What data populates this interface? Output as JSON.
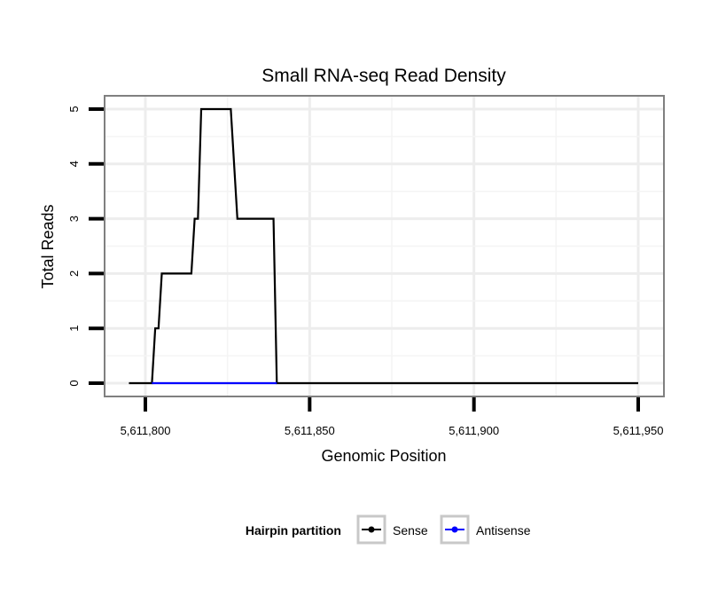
{
  "chart_data": {
    "type": "line",
    "title": "Small RNA-seq Read Density",
    "xlabel": "Genomic Position",
    "ylabel": "Total Reads",
    "xlim": [
      5611795,
      5611950
    ],
    "ylim": [
      0,
      5
    ],
    "x_ticks": [
      5611800,
      5611850,
      5611900,
      5611950
    ],
    "x_tick_labels": [
      "5,611,800",
      "5,611,850",
      "5,611,900",
      "5,611,950"
    ],
    "y_ticks": [
      0,
      1,
      2,
      3,
      4,
      5
    ],
    "y_tick_labels": [
      "0",
      "1",
      "2",
      "3",
      "4",
      "5"
    ],
    "grid": true,
    "legend": {
      "title": "Hairpin partition",
      "position": "bottom"
    },
    "series": [
      {
        "name": "Sense",
        "color": "#000000",
        "points": [
          [
            5611795,
            0
          ],
          [
            5611802,
            0
          ],
          [
            5611803,
            1
          ],
          [
            5611804,
            1
          ],
          [
            5611805,
            2
          ],
          [
            5611814,
            2
          ],
          [
            5611815,
            3
          ],
          [
            5611816,
            3
          ],
          [
            5611817,
            5
          ],
          [
            5611826,
            5
          ],
          [
            5611828,
            3
          ],
          [
            5611839,
            3
          ],
          [
            5611840,
            0
          ],
          [
            5611950,
            0
          ]
        ]
      },
      {
        "name": "Antisense",
        "color": "#0000ff",
        "points": [
          [
            5611802,
            0
          ],
          [
            5611840,
            0
          ]
        ]
      }
    ]
  }
}
